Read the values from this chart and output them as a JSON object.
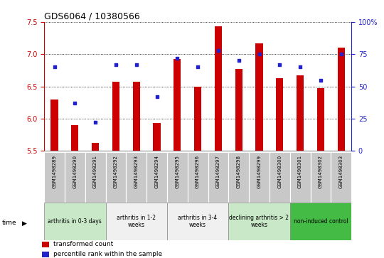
{
  "title": "GDS6064 / 10380566",
  "samples": [
    "GSM1498289",
    "GSM1498290",
    "GSM1498291",
    "GSM1498292",
    "GSM1498293",
    "GSM1498294",
    "GSM1498295",
    "GSM1498296",
    "GSM1498297",
    "GSM1498298",
    "GSM1498299",
    "GSM1498300",
    "GSM1498301",
    "GSM1498302",
    "GSM1498303"
  ],
  "bar_values": [
    6.3,
    5.9,
    5.63,
    6.57,
    6.57,
    5.93,
    6.93,
    6.5,
    7.43,
    6.77,
    7.17,
    6.63,
    6.67,
    6.47,
    7.1
  ],
  "dot_values": [
    65,
    37,
    22,
    67,
    67,
    42,
    72,
    65,
    78,
    70,
    75,
    67,
    65,
    55,
    75
  ],
  "ylim_left": [
    5.5,
    7.5
  ],
  "ylim_right": [
    0,
    100
  ],
  "yticks_left": [
    5.5,
    6.0,
    6.5,
    7.0,
    7.5
  ],
  "yticks_right": [
    0,
    25,
    50,
    75,
    100
  ],
  "ytick_labels_right": [
    "0",
    "25",
    "50",
    "75",
    "100%"
  ],
  "groups": [
    {
      "label": "arthritis in 0-3 days",
      "start": 0,
      "end": 3,
      "color": "#c8e8c8"
    },
    {
      "label": "arthritis in 1-2\nweeks",
      "start": 3,
      "end": 6,
      "color": "#f0f0f0"
    },
    {
      "label": "arthritis in 3-4\nweeks",
      "start": 6,
      "end": 9,
      "color": "#f0f0f0"
    },
    {
      "label": "declining arthritis > 2\nweeks",
      "start": 9,
      "end": 12,
      "color": "#c8e8c8"
    },
    {
      "label": "non-induced control",
      "start": 12,
      "end": 15,
      "color": "#44bb44"
    }
  ],
  "bar_color": "#cc0000",
  "dot_color": "#2222cc",
  "bar_width": 0.35,
  "tick_color_left": "#cc0000",
  "tick_color_right": "#2222cc",
  "legend_items": [
    {
      "label": "transformed count",
      "color": "#cc0000"
    },
    {
      "label": "percentile rank within the sample",
      "color": "#2222cc"
    }
  ],
  "time_label": "time",
  "sample_bg": "#c8c8c8"
}
